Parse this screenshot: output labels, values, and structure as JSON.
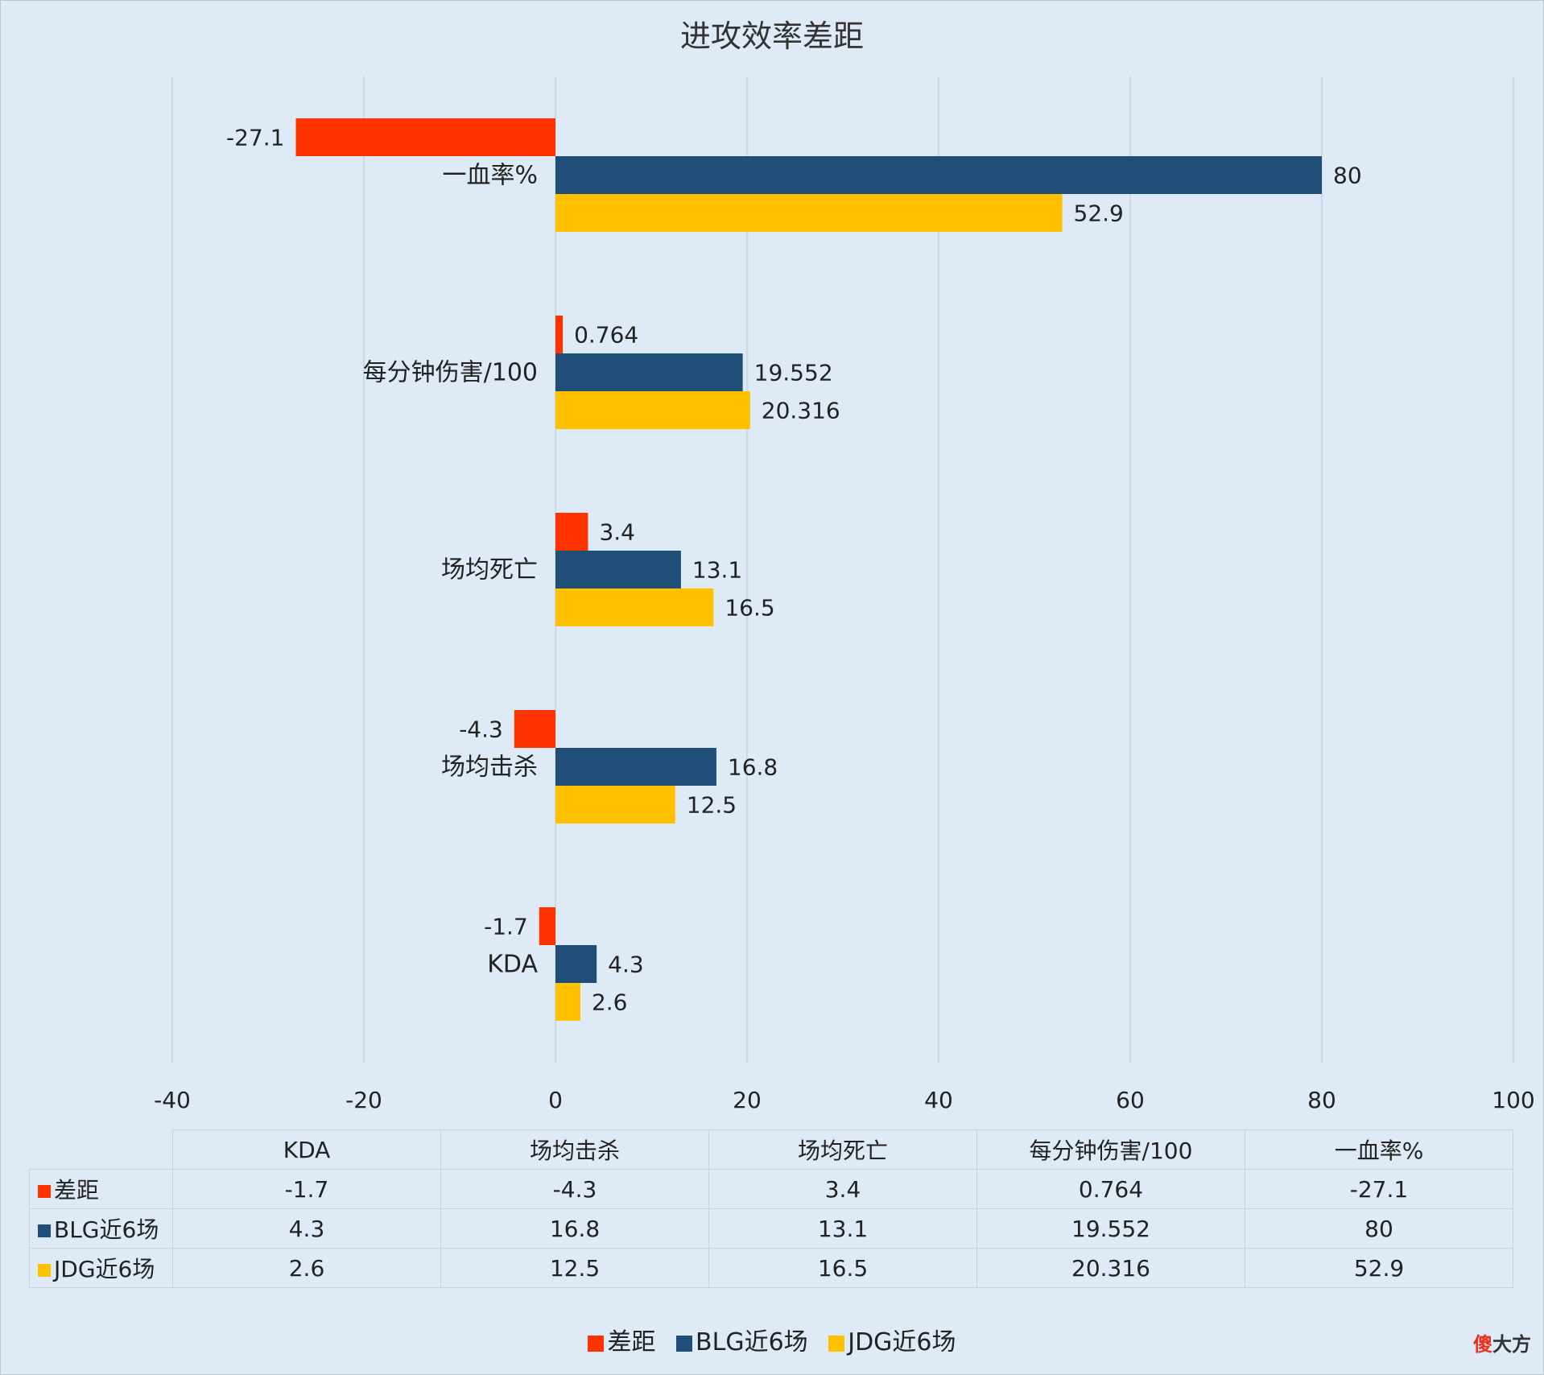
{
  "chart_data": {
    "type": "bar",
    "orientation": "horizontal",
    "title": "进攻效率差距",
    "categories": [
      "KDA",
      "场均击杀",
      "场均死亡",
      "每分钟伤害/100",
      "一血率%"
    ],
    "series": [
      {
        "name": "差距",
        "color": "#ff3300",
        "values": [
          -1.7,
          -4.3,
          3.4,
          0.764,
          -27.1
        ]
      },
      {
        "name": "BLG近6场",
        "color": "#1f4e79",
        "values": [
          4.3,
          16.8,
          13.1,
          19.552,
          80
        ]
      },
      {
        "name": "JDG近6场",
        "color": "#ffc000",
        "values": [
          2.6,
          12.5,
          16.5,
          20.316,
          52.9
        ]
      }
    ],
    "xlim": [
      -40,
      100
    ],
    "xticks": [
      "-40",
      "-20",
      "0",
      "20",
      "40",
      "60",
      "80",
      "100"
    ],
    "grid": true,
    "legend_position": "bottom",
    "data_table": true
  },
  "table": {
    "headers": [
      "KDA",
      "场均击杀",
      "场均死亡",
      "每分钟伤害/100",
      "一血率%"
    ],
    "rows": [
      {
        "label": "差距",
        "color": "#ff3300",
        "cells": [
          "-1.7",
          "-4.3",
          "3.4",
          "0.764",
          "-27.1"
        ]
      },
      {
        "label": "BLG近6场",
        "color": "#1f4e79",
        "cells": [
          "4.3",
          "16.8",
          "13.1",
          "19.552",
          "80"
        ]
      },
      {
        "label": "JDG近6场",
        "color": "#ffc000",
        "cells": [
          "2.6",
          "12.5",
          "16.5",
          "20.316",
          "52.9"
        ]
      }
    ]
  },
  "legend": [
    {
      "label": "差距",
      "color": "#ff3300"
    },
    {
      "label": "BLG近6场",
      "color": "#1f4e79"
    },
    {
      "label": "JDG近6场",
      "color": "#ffc000"
    }
  ],
  "watermark": {
    "accent": "傻",
    "rest": "大方"
  }
}
